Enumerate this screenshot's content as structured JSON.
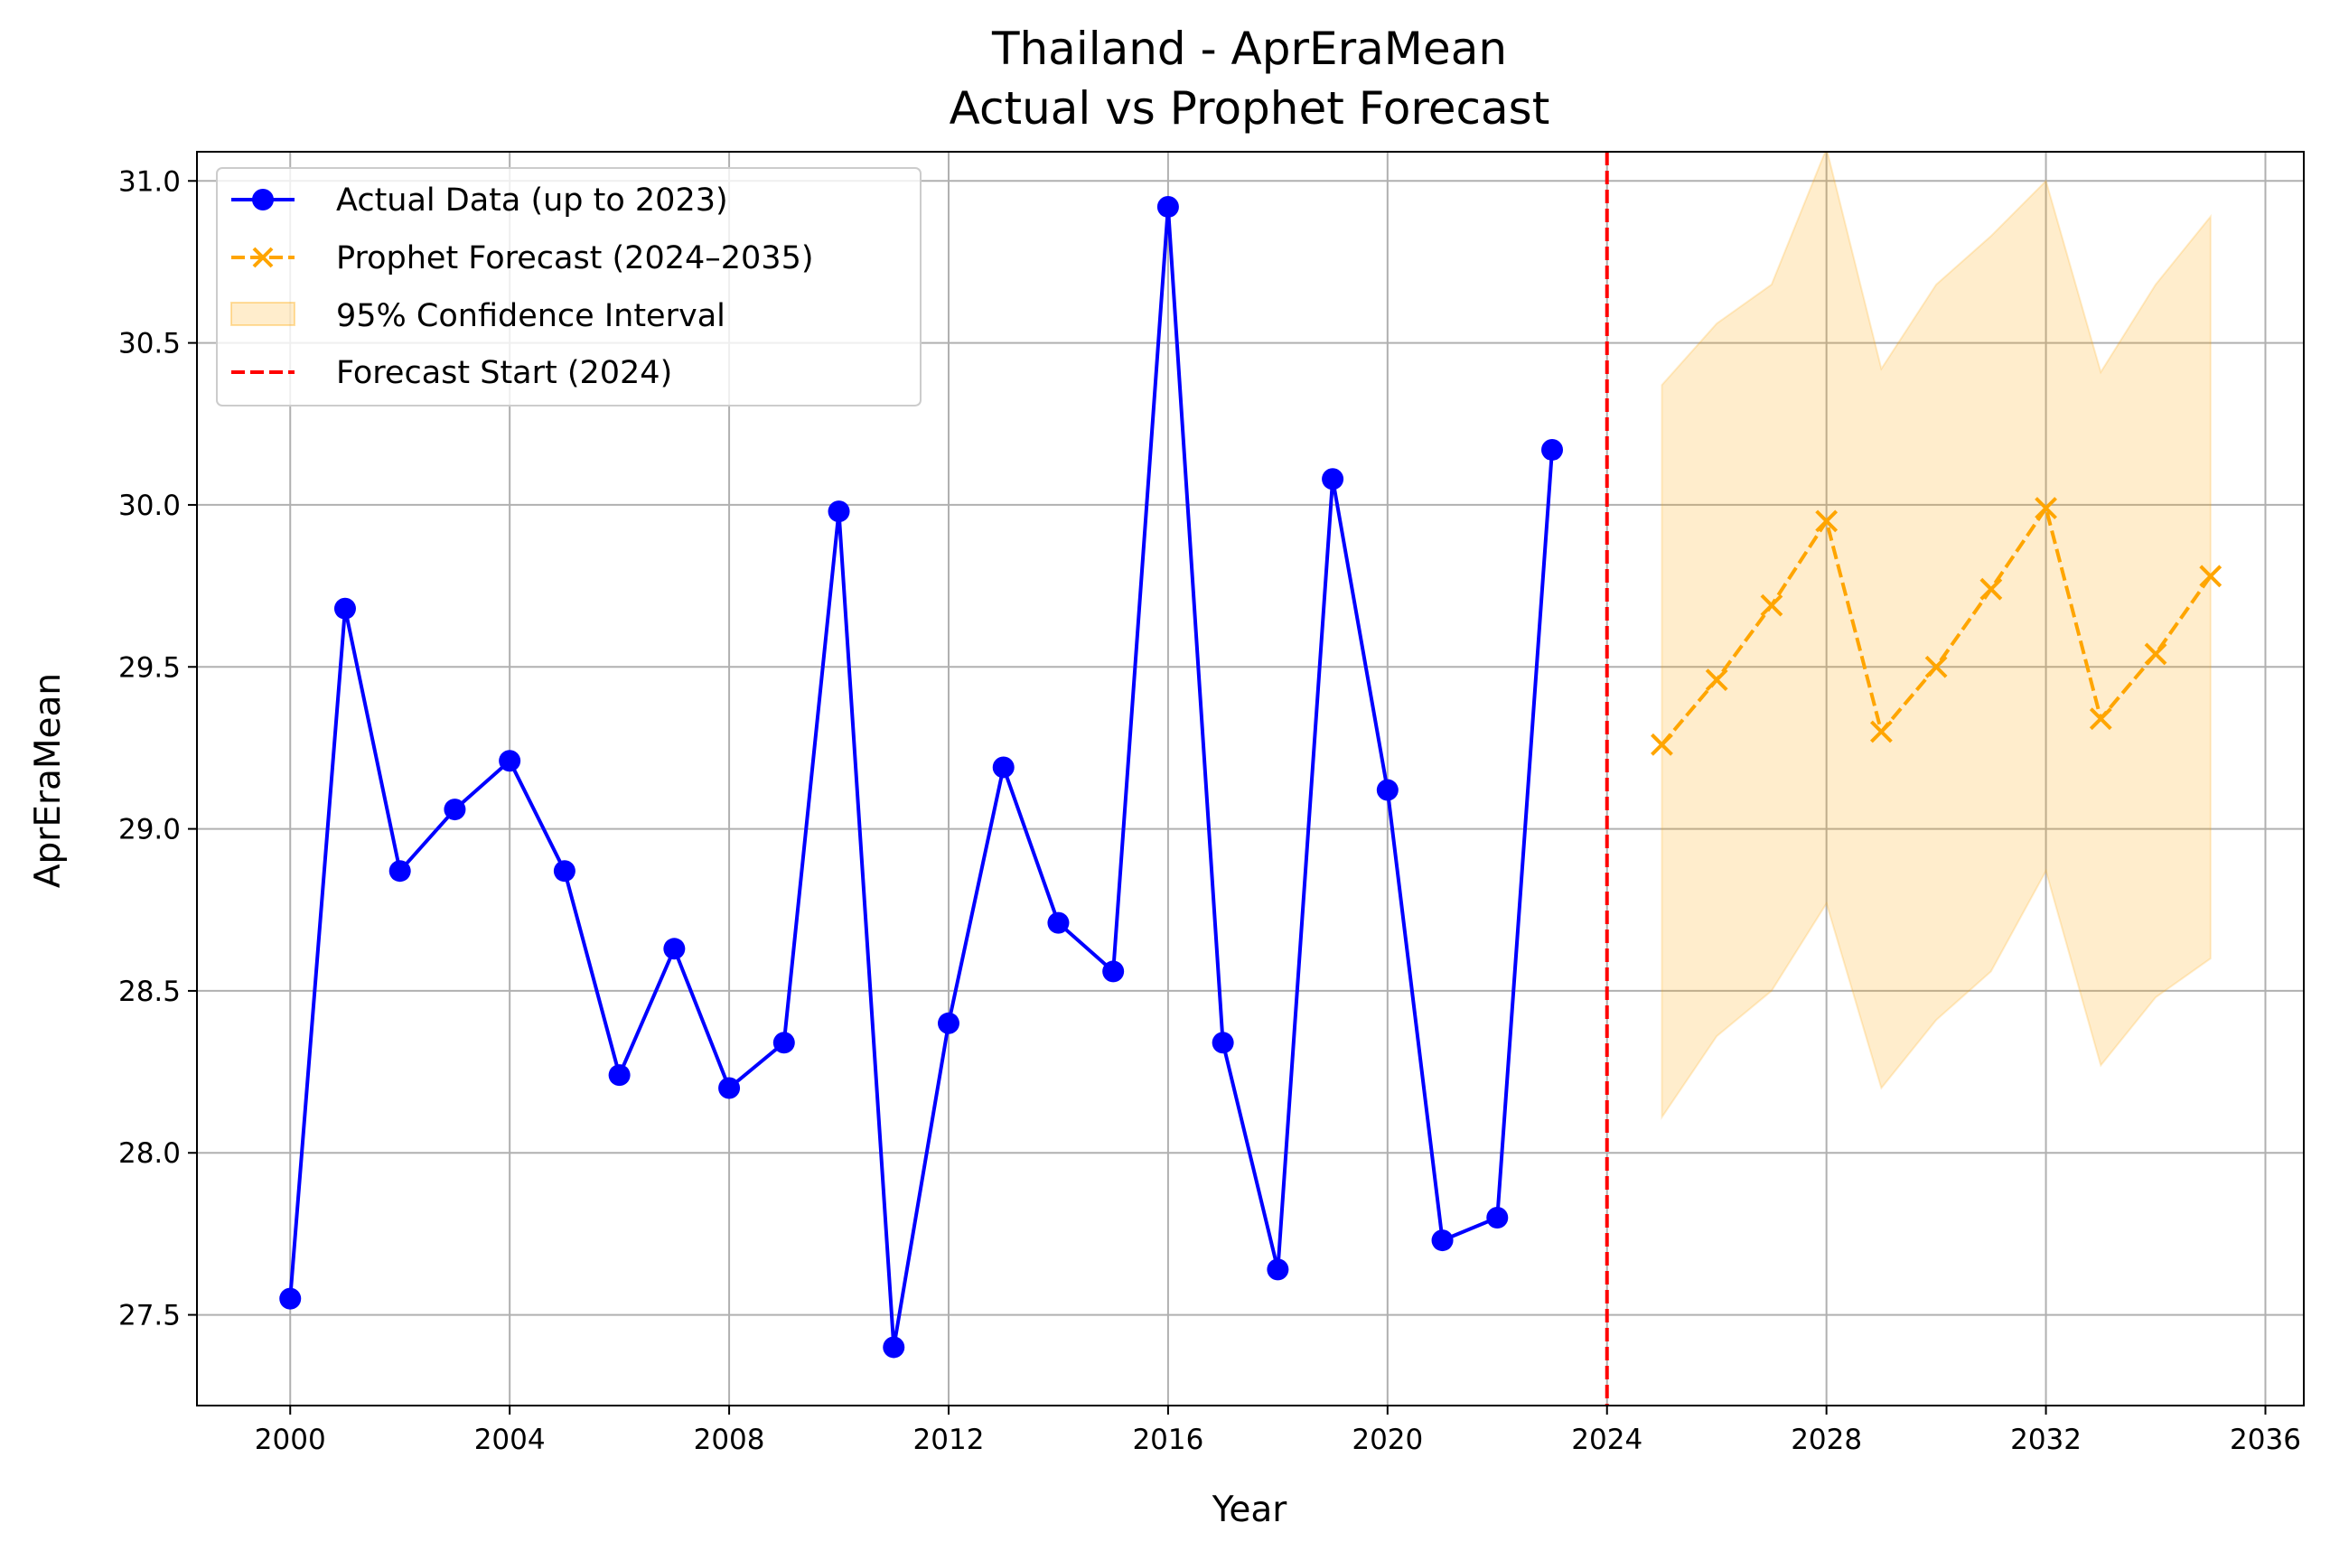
{
  "chart_data": {
    "type": "line",
    "title_line1": "Thailand - AprEraMean",
    "title_line2": "Actual vs Prophet Forecast",
    "xlabel": "Year",
    "ylabel": "AprEraMean",
    "xlim": [
      1998.3,
      2036.7
    ],
    "ylim": [
      27.22,
      31.09
    ],
    "x_ticks": [
      2000,
      2004,
      2008,
      2012,
      2016,
      2020,
      2024,
      2028,
      2032,
      2036
    ],
    "x_tick_labels": [
      "2000",
      "2004",
      "2008",
      "2012",
      "2016",
      "2020",
      "2024",
      "2028",
      "2032",
      "2036"
    ],
    "y_ticks": [
      27.5,
      28.0,
      28.5,
      29.0,
      29.5,
      30.0,
      30.5,
      31.0
    ],
    "y_tick_labels": [
      "27.5",
      "28.0",
      "28.5",
      "29.0",
      "29.5",
      "30.0",
      "30.5",
      "31.0"
    ],
    "grid": true,
    "legend_position": "top-left",
    "forecast_start": 2024,
    "series": [
      {
        "name": "Actual Data (up to 2023)",
        "color": "#0000ff",
        "marker": "circle",
        "line_style": "solid",
        "x": [
          2000,
          2001,
          2002,
          2003,
          2004,
          2005,
          2006,
          2007,
          2008,
          2009,
          2010,
          2011,
          2012,
          2013,
          2014,
          2015,
          2016,
          2017,
          2018,
          2019,
          2020,
          2021,
          2022,
          2023
        ],
        "y": [
          27.55,
          29.68,
          28.87,
          29.06,
          29.21,
          28.87,
          28.24,
          28.63,
          28.2,
          28.34,
          29.98,
          27.4,
          28.4,
          29.19,
          28.71,
          28.56,
          30.92,
          28.34,
          27.64,
          30.08,
          29.12,
          27.73,
          27.8,
          30.17
        ]
      },
      {
        "name": "Prophet Forecast (2024–2035)",
        "color": "#ffa500",
        "marker": "x",
        "line_style": "dashed",
        "x": [
          2025,
          2026,
          2027,
          2028,
          2029,
          2030,
          2031,
          2032,
          2033,
          2034,
          2035
        ],
        "y": [
          29.26,
          29.46,
          29.69,
          29.95,
          29.3,
          29.5,
          29.74,
          29.99,
          29.34,
          29.54,
          29.78
        ]
      }
    ],
    "confidence_interval": {
      "name": "95% Confidence Interval",
      "color": "#ffa500",
      "x": [
        2025,
        2026,
        2027,
        2028,
        2029,
        2030,
        2031,
        2032,
        2033,
        2034,
        2035
      ],
      "lower": [
        28.11,
        28.36,
        28.5,
        28.77,
        28.2,
        28.41,
        28.56,
        28.87,
        28.27,
        28.48,
        28.6
      ],
      "upper": [
        30.37,
        30.56,
        30.68,
        31.1,
        30.42,
        30.68,
        30.83,
        31.0,
        30.41,
        30.68,
        30.89
      ]
    },
    "forecast_start_line": {
      "name": "Forecast Start (2024)",
      "color": "#ff0000",
      "line_style": "dashed"
    }
  }
}
